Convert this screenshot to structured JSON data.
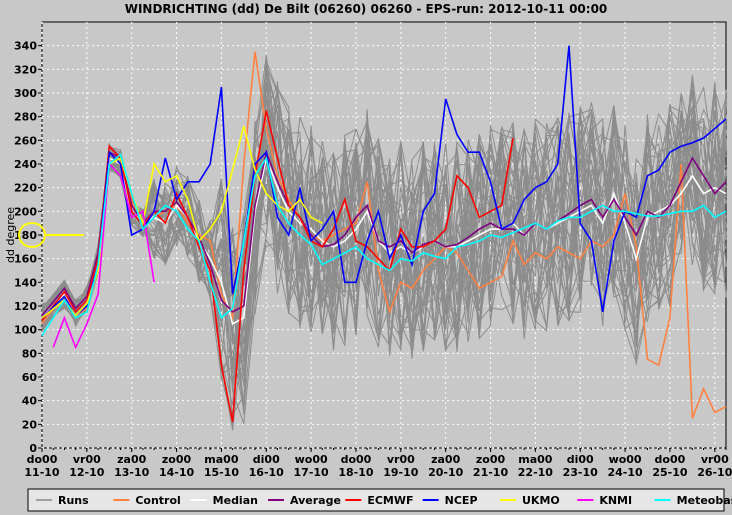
{
  "chart_data": {
    "type": "line",
    "title": "WINDRICHTING (dd) De Bilt (06260) 06260 - EPS-run: 2012-10-11 00:00",
    "ylabel": "dd degree",
    "ylim": [
      0,
      360
    ],
    "yticks": [
      0,
      20,
      40,
      60,
      80,
      100,
      120,
      140,
      160,
      180,
      200,
      220,
      240,
      260,
      280,
      300,
      320,
      340
    ],
    "x_unit": "days since do00 11-10",
    "xlim": [
      0,
      15.25
    ],
    "x_tick_labels": [
      {
        "day": "do00",
        "date": "11-10"
      },
      {
        "day": "vr00",
        "date": "12-10"
      },
      {
        "day": "za00",
        "date": "13-10"
      },
      {
        "day": "zo00",
        "date": "14-10"
      },
      {
        "day": "ma00",
        "date": "15-10"
      },
      {
        "day": "di00",
        "date": "16-10"
      },
      {
        "day": "wo00",
        "date": "17-10"
      },
      {
        "day": "do00",
        "date": "18-10"
      },
      {
        "day": "vr00",
        "date": "19-10"
      },
      {
        "day": "za00",
        "date": "20-10"
      },
      {
        "day": "zo00",
        "date": "21-10"
      },
      {
        "day": "ma00",
        "date": "22-10"
      },
      {
        "day": "di00",
        "date": "23-10"
      },
      {
        "day": "wo00",
        "date": "24-10"
      },
      {
        "day": "do00",
        "date": "25-10"
      },
      {
        "day": "vr00",
        "date": "26-10"
      }
    ],
    "grid": true,
    "legend_position": "bottom",
    "marker": {
      "x": 0,
      "y": 180,
      "color": "#ffff00"
    },
    "series": [
      {
        "name": "Control",
        "color": "#ff8040",
        "x": [
          0,
          0.5,
          0.75,
          1,
          1.25,
          1.5,
          1.75,
          2,
          2.25,
          2.5,
          2.75,
          3,
          3.25,
          3.5,
          3.75,
          4,
          4.25,
          4.5,
          4.75,
          5,
          5.25,
          5.5,
          5.75,
          6,
          6.25,
          6.5,
          6.75,
          7,
          7.25,
          7.5,
          7.75,
          8,
          8.25,
          8.5,
          8.75,
          9,
          9.25,
          9.5,
          9.75,
          10,
          10.25,
          10.5,
          10.75,
          11,
          11.25,
          11.5,
          11.75,
          12,
          12.25,
          12.5,
          12.75,
          13,
          13.25,
          13.5,
          13.75,
          14,
          14.25,
          14.5,
          14.75,
          15,
          15.25
        ],
        "values": [
          105,
          130,
          112,
          118,
          150,
          250,
          245,
          210,
          185,
          195,
          200,
          205,
          190,
          180,
          175,
          130,
          110,
          240,
          335,
          270,
          230,
          210,
          195,
          180,
          175,
          180,
          185,
          190,
          225,
          150,
          115,
          140,
          135,
          150,
          160,
          170,
          165,
          150,
          135,
          140,
          145,
          175,
          155,
          165,
          160,
          170,
          165,
          160,
          175,
          170,
          180,
          215,
          170,
          75,
          70,
          110,
          240,
          25,
          50,
          30,
          35
        ]
      },
      {
        "name": "Median",
        "color": "#ffffff",
        "x": [
          0,
          0.5,
          0.75,
          1,
          1.25,
          1.5,
          1.75,
          2,
          2.25,
          2.5,
          2.75,
          3,
          3.25,
          3.5,
          3.75,
          4,
          4.25,
          4.5,
          4.75,
          5,
          5.25,
          5.5,
          5.75,
          6,
          6.25,
          6.5,
          6.75,
          7,
          7.25,
          7.5,
          7.75,
          8,
          8.25,
          8.5,
          8.75,
          9,
          9.25,
          9.5,
          9.75,
          10,
          10.25,
          10.5,
          10.75,
          11,
          11.25,
          11.5,
          11.75,
          12,
          12.25,
          12.5,
          12.75,
          13,
          13.25,
          13.5,
          13.75,
          14,
          14.25,
          14.5,
          14.75,
          15,
          15.25
        ],
        "values": [
          110,
          130,
          115,
          125,
          160,
          245,
          240,
          200,
          190,
          195,
          190,
          205,
          195,
          175,
          160,
          140,
          105,
          110,
          200,
          245,
          220,
          200,
          190,
          185,
          175,
          170,
          175,
          185,
          200,
          175,
          165,
          170,
          165,
          170,
          175,
          170,
          170,
          175,
          180,
          185,
          185,
          190,
          180,
          190,
          185,
          190,
          195,
          200,
          205,
          190,
          215,
          190,
          160,
          195,
          200,
          205,
          215,
          230,
          215,
          220,
          215
        ]
      },
      {
        "name": "Average",
        "color": "#800080",
        "x": [
          0,
          0.5,
          0.75,
          1,
          1.25,
          1.5,
          1.75,
          2,
          2.25,
          2.5,
          2.75,
          3,
          3.25,
          3.5,
          3.75,
          4,
          4.25,
          4.5,
          4.75,
          5,
          5.25,
          5.5,
          5.75,
          6,
          6.25,
          6.5,
          6.75,
          7,
          7.25,
          7.5,
          7.75,
          8,
          8.25,
          8.5,
          8.75,
          9,
          9.25,
          9.5,
          9.75,
          10,
          10.25,
          10.5,
          10.75,
          11,
          11.25,
          11.5,
          11.75,
          12,
          12.25,
          12.5,
          12.75,
          13,
          13.25,
          13.5,
          13.75,
          14,
          14.25,
          14.5,
          14.75,
          15,
          15.25
        ],
        "values": [
          112,
          135,
          118,
          128,
          165,
          250,
          245,
          205,
          190,
          200,
          200,
          208,
          195,
          178,
          155,
          125,
          115,
          120,
          205,
          250,
          225,
          205,
          195,
          180,
          170,
          172,
          180,
          195,
          205,
          175,
          170,
          175,
          165,
          172,
          175,
          170,
          172,
          178,
          185,
          190,
          185,
          185,
          180,
          190,
          185,
          192,
          198,
          205,
          210,
          195,
          210,
          195,
          180,
          200,
          195,
          205,
          225,
          245,
          230,
          215,
          225
        ]
      },
      {
        "name": "ECMWF",
        "color": "#ff0000",
        "x": [
          0,
          0.5,
          0.75,
          1,
          1.25,
          1.5,
          1.75,
          2,
          2.25,
          2.5,
          2.75,
          3,
          3.25,
          3.5,
          3.75,
          4,
          4.25,
          4.5,
          4.75,
          5,
          5.25,
          5.5,
          5.75,
          6,
          6.25,
          6.5,
          6.75,
          7,
          7.25,
          7.5,
          7.75,
          8,
          8.25,
          8.5,
          8.75,
          9,
          9.25,
          9.5,
          9.75,
          10,
          10.25,
          10.5
        ],
        "values": [
          108,
          132,
          115,
          125,
          160,
          255,
          245,
          200,
          188,
          200,
          190,
          215,
          195,
          170,
          150,
          70,
          22,
          150,
          230,
          285,
          245,
          205,
          195,
          175,
          170,
          185,
          210,
          175,
          170,
          160,
          150,
          185,
          170,
          170,
          175,
          185,
          230,
          220,
          195,
          200,
          205,
          262
        ]
      },
      {
        "name": "NCEP",
        "color": "#0000ff",
        "x": [
          0,
          0.5,
          0.75,
          1,
          1.25,
          1.5,
          1.75,
          2,
          2.25,
          2.5,
          2.75,
          3,
          3.25,
          3.5,
          3.75,
          4,
          4.25,
          4.5,
          4.75,
          5,
          5.25,
          5.5,
          5.75,
          6,
          6.25,
          6.5,
          6.75,
          7,
          7.25,
          7.5,
          7.75,
          8,
          8.25,
          8.5,
          8.75,
          9,
          9.25,
          9.5,
          9.75,
          10,
          10.25,
          10.5,
          10.75,
          11,
          11.25,
          11.5,
          11.75,
          12,
          12.25,
          12.5,
          12.75,
          13,
          13.25,
          13.5,
          13.75,
          14,
          14.25,
          14.5,
          14.75,
          15,
          15.25
        ],
        "values": [
          110,
          128,
          112,
          120,
          155,
          250,
          240,
          180,
          185,
          200,
          245,
          210,
          225,
          225,
          240,
          305,
          130,
          175,
          240,
          250,
          195,
          180,
          220,
          175,
          185,
          200,
          140,
          140,
          175,
          200,
          160,
          180,
          155,
          200,
          215,
          295,
          265,
          250,
          250,
          225,
          185,
          190,
          210,
          220,
          225,
          240,
          340,
          190,
          175,
          115,
          175,
          200,
          195,
          230,
          235,
          250,
          255,
          258,
          262,
          270,
          278
        ]
      },
      {
        "name": "UKMO",
        "color": "#ffff00",
        "x": [
          0,
          0.5,
          0.75,
          1,
          1.25,
          1.5,
          1.75,
          2,
          2.25,
          2.5,
          2.75,
          3,
          3.25,
          3.5,
          3.75,
          4,
          4.25,
          4.5,
          4.75,
          5,
          5.25,
          5.5,
          5.75,
          6,
          6.25
        ],
        "values": [
          110,
          125,
          112,
          122,
          150,
          240,
          245,
          215,
          190,
          240,
          225,
          230,
          210,
          175,
          185,
          200,
          235,
          272,
          235,
          215,
          205,
          200,
          210,
          195,
          190
        ]
      },
      {
        "name": "KNMI",
        "color": "#ff00ff",
        "x": [
          0.25,
          0.5,
          0.75,
          1,
          1.25,
          1.5,
          1.75,
          2,
          2.25,
          2.5
        ],
        "values": [
          85,
          110,
          85,
          105,
          130,
          240,
          230,
          195,
          200,
          140
        ]
      },
      {
        "name": "Meteobase",
        "color": "#00ffff",
        "x": [
          0,
          0.5,
          0.75,
          1,
          1.25,
          1.5,
          1.75,
          2,
          2.25,
          2.5,
          2.75,
          3,
          3.25,
          3.5,
          3.75,
          4,
          4.25,
          4.5,
          4.75,
          5,
          5.25,
          5.5,
          5.75,
          6,
          6.25,
          6.5,
          6.75,
          7,
          7.25,
          7.5,
          7.75,
          8,
          8.25,
          8.5,
          8.75,
          9,
          9.25,
          9.5,
          9.75,
          10,
          10.25,
          10.5,
          10.75,
          11,
          11.25,
          11.5,
          11.75,
          12,
          12.25,
          12.5,
          12.75,
          13,
          13.25,
          13.5,
          13.75,
          14,
          14.25,
          14.5,
          14.75,
          15,
          15.25
        ],
        "values": [
          95,
          125,
          110,
          115,
          155,
          240,
          248,
          215,
          185,
          195,
          205,
          200,
          185,
          175,
          140,
          110,
          118,
          175,
          230,
          245,
          205,
          190,
          180,
          172,
          155,
          160,
          165,
          170,
          160,
          155,
          150,
          160,
          158,
          165,
          162,
          160,
          170,
          172,
          175,
          180,
          178,
          182,
          186,
          190,
          185,
          192,
          195,
          195,
          200,
          205,
          200,
          200,
          198,
          196,
          196,
          198,
          200,
          200,
          205,
          195,
          200
        ]
      }
    ],
    "legend": [
      "Runs",
      "Control",
      "Median",
      "Average",
      "ECMWF",
      "NCEP",
      "UKMO",
      "KNMI",
      "Meteobase"
    ]
  }
}
